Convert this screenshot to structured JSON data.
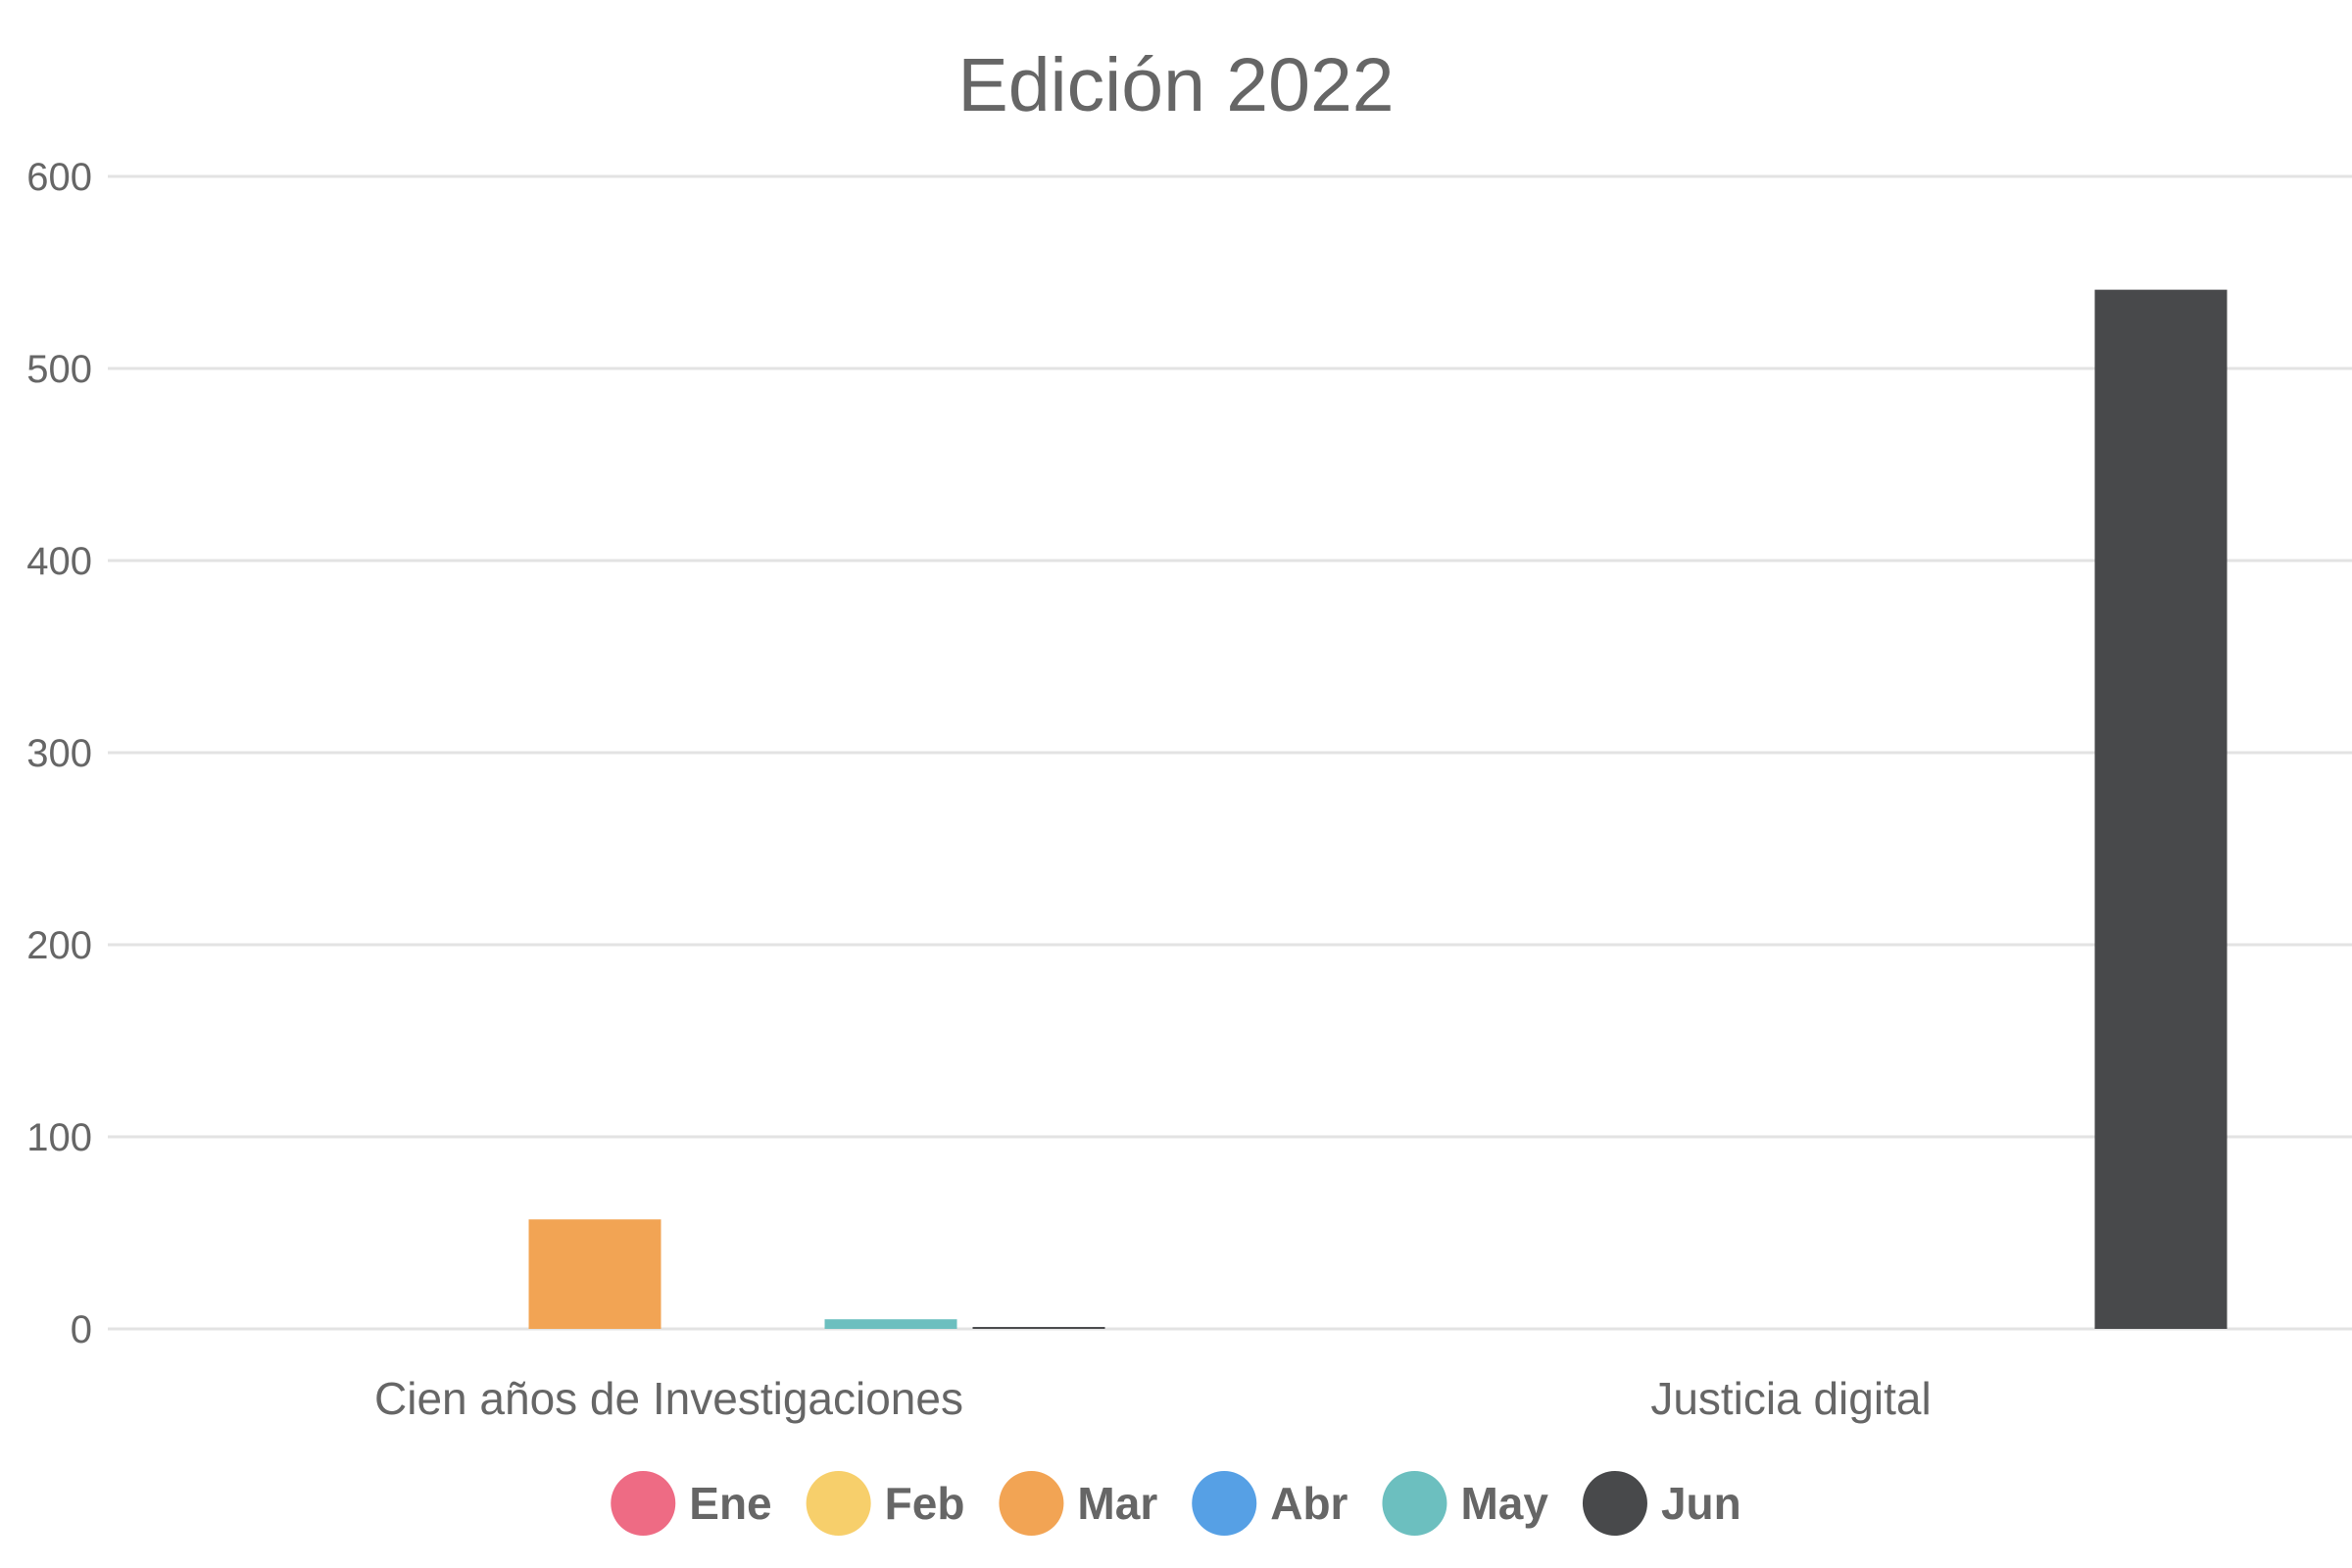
{
  "chart_data": {
    "type": "bar",
    "title": "Edición 2022",
    "xlabel": "",
    "ylabel": "",
    "categories": [
      "Cien años de Investigaciones",
      "Justicia digital"
    ],
    "ylim": [
      0,
      600
    ],
    "yticks": [
      0,
      100,
      200,
      300,
      400,
      500,
      600
    ],
    "grid": true,
    "legend_position": "bottom",
    "series": [
      {
        "name": "Ene",
        "color": "#ee6b84",
        "values": [
          0,
          0
        ]
      },
      {
        "name": "Feb",
        "color": "#f7cf6b",
        "values": [
          0,
          0
        ]
      },
      {
        "name": "Mar",
        "color": "#f2a454",
        "values": [
          57,
          0
        ]
      },
      {
        "name": "Abr",
        "color": "#56a0e5",
        "values": [
          0,
          0
        ]
      },
      {
        "name": "May",
        "color": "#6cbfbf",
        "values": [
          5,
          0
        ]
      },
      {
        "name": "Jun",
        "color": "#48494b",
        "values": [
          1,
          541
        ]
      }
    ]
  }
}
